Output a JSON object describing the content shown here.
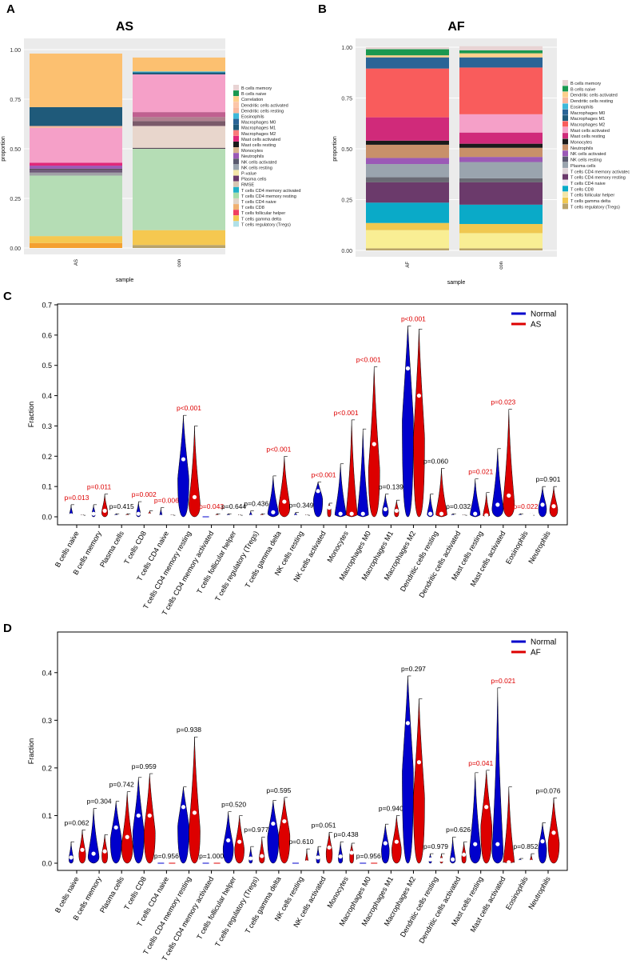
{
  "panels": {
    "a": "A",
    "b": "B",
    "c": "C",
    "d": "D"
  },
  "colors": {
    "normal": "#0000cc",
    "disease": "#dd0000",
    "sig": "#dd0000",
    "ns": "#000000"
  },
  "chart_data": [
    {
      "id": "A",
      "type": "bar",
      "stacked": true,
      "title": "AS",
      "xlabel": "sample",
      "ylabel": "proportion",
      "ylim": [
        0,
        1
      ],
      "yticks": [
        "0.00",
        "0.25",
        "0.50",
        "0.75",
        "1.00"
      ],
      "categories": [
        "AS",
        "con"
      ],
      "legend_position": "right",
      "legend": [
        "B cells memory",
        "B cells naive",
        "Correlation",
        "Dendritic cells activated",
        "Dendritic cells resting",
        "Eosinophils",
        "Macrophages M0",
        "Macrophages M1",
        "Macrophages M2",
        "Mast cells activated",
        "Mast cells resting",
        "Monocytes",
        "Neutrophils",
        "NK cells activated",
        "NK cells resting",
        "P-value",
        "Plasma cells",
        "RMSE",
        "T cells CD4 memory activated",
        "T cells CD4 memory resting",
        "T cells CD4 naive",
        "T cells CD8",
        "T cells follicular helper",
        "T cells gamma delta",
        "T cells regulatory (Tregs)"
      ],
      "legend_colors": [
        "#e8d4d4",
        "#1a9850",
        "#fdd08c",
        "#fcc6a8",
        "#f9b89e",
        "#3fb8d9",
        "#2a6496",
        "#1f5a7a",
        "#f97a7a",
        "#e0287a",
        "#1a1a1a",
        "#d8b08c",
        "#9b59b6",
        "#5a5a6e",
        "#9aa4ae",
        "#f4e6a8",
        "#6b3a6b",
        "#d9c6b2",
        "#23b0c8",
        "#a8dca8",
        "#e0d4c8",
        "#f0b070",
        "#f04060",
        "#f4c850",
        "#b0e0e8"
      ],
      "series": [
        {
          "name": "T cells regulatory (Tregs)",
          "color": "#b9a36a",
          "values": [
            0.0,
            0.015
          ]
        },
        {
          "name": "T cells gamma delta",
          "color": "#f4a030",
          "values": [
            0.025,
            0.0
          ]
        },
        {
          "name": "T cells CD4 memory resting",
          "color": "#f5c850",
          "values": [
            0.035,
            0.075
          ]
        },
        {
          "name": "T cells CD4 naive",
          "color": "#b5ddb5",
          "values": [
            0.305,
            0.41
          ]
        },
        {
          "name": "NK cells resting",
          "color": "#a0a0a6",
          "values": [
            0.015,
            0.0
          ]
        },
        {
          "name": "NK cells activated",
          "color": "#6e5a78",
          "values": [
            0.015,
            0.0
          ]
        },
        {
          "name": "Mast cells resting",
          "color": "#5a4a5a",
          "values": [
            0.005,
            0.005
          ]
        },
        {
          "name": "Plasma cells",
          "color": "#9b59b6",
          "values": [
            0.015,
            0.0
          ]
        },
        {
          "name": "Mast cells activated",
          "color": "#e0287a",
          "values": [
            0.015,
            0.0
          ]
        },
        {
          "name": "Monocytes",
          "color": "#e8d6cc",
          "values": [
            0.0,
            0.11
          ]
        },
        {
          "name": "B cells memory",
          "color": "#7a5a6a",
          "values": [
            0.0,
            0.025
          ]
        },
        {
          "name": "Macrophages M1",
          "color": "#b08090",
          "values": [
            0.0,
            0.02
          ]
        },
        {
          "name": "Dendritic cells resting",
          "color": "#c06090",
          "values": [
            0.0,
            0.025
          ]
        },
        {
          "name": "Macrophages M2",
          "color": "#f5a0c8",
          "values": [
            0.175,
            0.19
          ]
        },
        {
          "name": "Dendritic cells activated",
          "color": "#f5b8a0",
          "values": [
            0.01,
            0.0
          ]
        },
        {
          "name": "Macrophages M0",
          "color": "#1f5a7a",
          "values": [
            0.095,
            0.01
          ]
        },
        {
          "name": "Eosinophils",
          "color": "#3fb8d9",
          "values": [
            0.0,
            0.005
          ]
        },
        {
          "name": "Correlation",
          "color": "#fcc070",
          "values": [
            0.27,
            0.07
          ]
        }
      ]
    },
    {
      "id": "B",
      "type": "bar",
      "stacked": true,
      "title": "AF",
      "xlabel": "sample",
      "ylabel": "proportion",
      "ylim": [
        0,
        1
      ],
      "yticks": [
        "0.00",
        "0.25",
        "0.50",
        "0.75",
        "1.00"
      ],
      "categories": [
        "AF",
        "con"
      ],
      "legend_position": "right",
      "legend": [
        "B cells memory",
        "B cells naive",
        "Dendritic cells activated",
        "Dendritic cells resting",
        "Eosinophils",
        "Macrophages M0",
        "Macrophages M1",
        "Macrophages M2",
        "Mast cells activated",
        "Mast cells resting",
        "Monocytes",
        "Neutrophils",
        "NK cells activated",
        "NK cells resting",
        "Plasma cells",
        "T cells CD4 memory activatec",
        "T cells CD4 memory resting",
        "T cells CD4 naive",
        "T cells CD8",
        "T cells follicular helper",
        "T cells gamma delta",
        "T cells regulatory (Tregs)"
      ],
      "legend_colors": [
        "#e8d4d4",
        "#1a9850",
        "#fdd08c",
        "#f9b89e",
        "#3fb8d9",
        "#2a6496",
        "#1f5a7a",
        "#f95c5c",
        "#f5a0c8",
        "#d02a7a",
        "#1a1a1a",
        "#c8906a",
        "#9b59b6",
        "#5a5a6e",
        "#9aa4ae",
        "#e0d4d8",
        "#6b3a6b",
        "#f0e6f0",
        "#0aaac8",
        "#f4e6a8",
        "#f0c850",
        "#b9a36a"
      ],
      "series": [
        {
          "name": "T cells regulatory (Tregs)",
          "color": "#b9a36a",
          "values": [
            0.01,
            0.01
          ]
        },
        {
          "name": "T cells follicular helper",
          "color": "#f9ee94",
          "values": [
            0.09,
            0.075
          ]
        },
        {
          "name": "T cells gamma delta",
          "color": "#f0c850",
          "values": [
            0.035,
            0.045
          ]
        },
        {
          "name": "T cells CD8",
          "color": "#0aaac8",
          "values": [
            0.1,
            0.095
          ]
        },
        {
          "name": "T cells CD4 memory resting",
          "color": "#6b3a6b",
          "values": [
            0.1,
            0.11
          ]
        },
        {
          "name": "T cells CD4 memory activatec",
          "color": "#6a6a74",
          "values": [
            0.025,
            0.02
          ]
        },
        {
          "name": "Plasma cells",
          "color": "#9aa4ae",
          "values": [
            0.065,
            0.08
          ]
        },
        {
          "name": "NK cells activated",
          "color": "#9b59b6",
          "values": [
            0.03,
            0.025
          ]
        },
        {
          "name": "Neutrophils",
          "color": "#c8906a",
          "values": [
            0.065,
            0.045
          ]
        },
        {
          "name": "Monocytes",
          "color": "#1a1a1a",
          "values": [
            0.02,
            0.02
          ]
        },
        {
          "name": "Mast cells resting",
          "color": "#d02a7a",
          "values": [
            0.115,
            0.055
          ]
        },
        {
          "name": "Mast cells activated",
          "color": "#f5a0c8",
          "values": [
            0.0,
            0.09
          ]
        },
        {
          "name": "Macrophages M2",
          "color": "#f95c5c",
          "values": [
            0.24,
            0.23
          ]
        },
        {
          "name": "Macrophages M0",
          "color": "#2a6496",
          "values": [
            0.055,
            0.05
          ]
        },
        {
          "name": "Dendritic cells activated",
          "color": "#fdd08c",
          "values": [
            0.01,
            0.02
          ]
        },
        {
          "name": "B cells naive",
          "color": "#1a9850",
          "values": [
            0.03,
            0.015
          ]
        },
        {
          "name": "B cells memory",
          "color": "#e8d4d4",
          "values": [
            0.01,
            0.02
          ]
        }
      ]
    },
    {
      "id": "C",
      "type": "violin",
      "ylabel": "Fraction",
      "ylim": [
        0,
        0.7
      ],
      "yticks": [
        "0.0",
        "0.1",
        "0.2",
        "0.3",
        "0.4",
        "0.5",
        "0.6",
        "0.7"
      ],
      "legend_position": "top-right",
      "groups": [
        "Normal",
        "AS"
      ],
      "categories": [
        "B cells naive",
        "B cells memory",
        "Plasma cells",
        "T cells CD8",
        "T cells CD4 naive",
        "T cells CD4 memory resting",
        "T cells CD4 memory activated",
        "T cells follicular helper",
        "T cells regulatory (Tregs)",
        "T cells gamma delta",
        "NK cells resting",
        "NK cells activated",
        "Monocytes",
        "Macrophages M0",
        "Macrophages M1",
        "Macrophages M2",
        "Dendritic cells resting",
        "Dendritic cells activated",
        "Mast cells resting",
        "Mast cells activated",
        "Eosinophils",
        "Neutrophils"
      ],
      "pvalues": [
        "p=0.013",
        "p=0.011",
        "p=0.415",
        "p=0.002",
        "p=0.006",
        "p<0.001",
        "p=0.043",
        "p=0.644",
        "p=0.436",
        "p<0.001",
        "p=0.349",
        "p<0.001",
        "p<0.001",
        "p<0.001",
        "p=0.139",
        "p<0.001",
        "p=0.060",
        "p=0.032",
        "p=0.021",
        "p=0.023",
        "p=0.022",
        "p=0.901"
      ],
      "significant": [
        true,
        true,
        false,
        true,
        true,
        true,
        true,
        false,
        false,
        true,
        false,
        true,
        true,
        true,
        false,
        true,
        false,
        false,
        true,
        true,
        true,
        false
      ],
      "series": [
        {
          "name": "Normal",
          "max": [
            0.04,
            0.04,
            0.01,
            0.05,
            0.03,
            0.335,
            0.0,
            0.01,
            0.02,
            0.135,
            0.015,
            0.115,
            0.175,
            0.29,
            0.075,
            0.63,
            0.075,
            0.01,
            0.125,
            0.225,
            0.01,
            0.1
          ],
          "median": [
            0.005,
            0.01,
            0.0,
            0.01,
            0.0,
            0.19,
            0.0,
            0.0,
            0.0,
            0.015,
            0.0,
            0.085,
            0.01,
            0.01,
            0.025,
            0.49,
            0.01,
            0.0,
            0.01,
            0.04,
            0.0,
            0.04
          ]
        },
        {
          "name": "AS",
          "max": [
            0.005,
            0.075,
            0.01,
            0.02,
            0.005,
            0.3,
            0.01,
            0.005,
            0.01,
            0.2,
            0.005,
            0.045,
            0.32,
            0.495,
            0.055,
            0.62,
            0.16,
            0.005,
            0.08,
            0.355,
            0.005,
            0.1
          ],
          "median": [
            0.0,
            0.02,
            0.0,
            0.005,
            0.0,
            0.065,
            0.0,
            0.0,
            0.0,
            0.05,
            0.0,
            0.03,
            0.01,
            0.24,
            0.02,
            0.4,
            0.01,
            0.0,
            0.005,
            0.07,
            0.005,
            0.035
          ]
        }
      ]
    },
    {
      "id": "D",
      "type": "violin",
      "ylabel": "Fraction",
      "ylim": [
        0,
        0.45
      ],
      "yticks": [
        "0.0",
        "0.1",
        "0.2",
        "0.3",
        "0.4"
      ],
      "legend_position": "top-right",
      "groups": [
        "Normal",
        "AF"
      ],
      "categories": [
        "B cells naive",
        "B cells memory",
        "Plasma cells",
        "T cells CD8",
        "T cells CD4 naive",
        "T cells CD4 memory resting",
        "T cells CD4 memory activated",
        "T cells follicular helper",
        "T cells regulatory (Tregs)",
        "T cells gamma delta",
        "NK cells resting",
        "NK cells activated",
        "Monocytes",
        "Macrophages M0",
        "Macrophages M1",
        "Macrophages M2",
        "Dendritic cells resting",
        "Dendritic cells activated",
        "Mast cells resting",
        "Mast cells activated",
        "Eosinophils",
        "Neutrophils"
      ],
      "pvalues": [
        "p=0.062",
        "p=0.304",
        "p=0.742",
        "p=0.959",
        "p=0.956",
        "p=0.938",
        "p=1.000",
        "p=0.520",
        "p=0.977",
        "p=0.595",
        "p=0.610",
        "p=0.051",
        "p=0.438",
        "p=0.956",
        "p=0.940",
        "p=0.297",
        "p=0.979",
        "p=0.626",
        "p=0.041",
        "p=0.021",
        "p=0.852",
        "p=0.076"
      ],
      "significant": [
        false,
        false,
        false,
        false,
        false,
        false,
        false,
        false,
        false,
        false,
        false,
        false,
        false,
        false,
        false,
        false,
        false,
        false,
        true,
        true,
        false,
        false
      ],
      "series": [
        {
          "name": "Normal",
          "max": [
            0.045,
            0.115,
            0.13,
            0.18,
            0.0,
            0.16,
            0.0,
            0.108,
            0.035,
            0.132,
            0.0,
            0.035,
            0.045,
            0.0,
            0.082,
            0.393,
            0.02,
            0.055,
            0.19,
            0.368,
            0.01,
            0.085
          ],
          "median": [
            0.012,
            0.02,
            0.075,
            0.1,
            0.0,
            0.118,
            0.0,
            0.048,
            0.01,
            0.083,
            0.0,
            0.012,
            0.014,
            0.0,
            0.042,
            0.294,
            0.008,
            0.008,
            0.04,
            0.04,
            0.003,
            0.046
          ]
        },
        {
          "name": "AF",
          "max": [
            0.07,
            0.06,
            0.15,
            0.188,
            0.0,
            0.265,
            0.0,
            0.1,
            0.055,
            0.138,
            0.03,
            0.065,
            0.042,
            0.0,
            0.1,
            0.345,
            0.02,
            0.045,
            0.195,
            0.16,
            0.02,
            0.137
          ],
          "median": [
            0.028,
            0.025,
            0.055,
            0.1,
            0.0,
            0.106,
            0.0,
            0.045,
            0.015,
            0.088,
            0.002,
            0.033,
            0.022,
            0.0,
            0.045,
            0.212,
            0.007,
            0.018,
            0.118,
            0.002,
            0.003,
            0.064
          ]
        }
      ]
    }
  ]
}
